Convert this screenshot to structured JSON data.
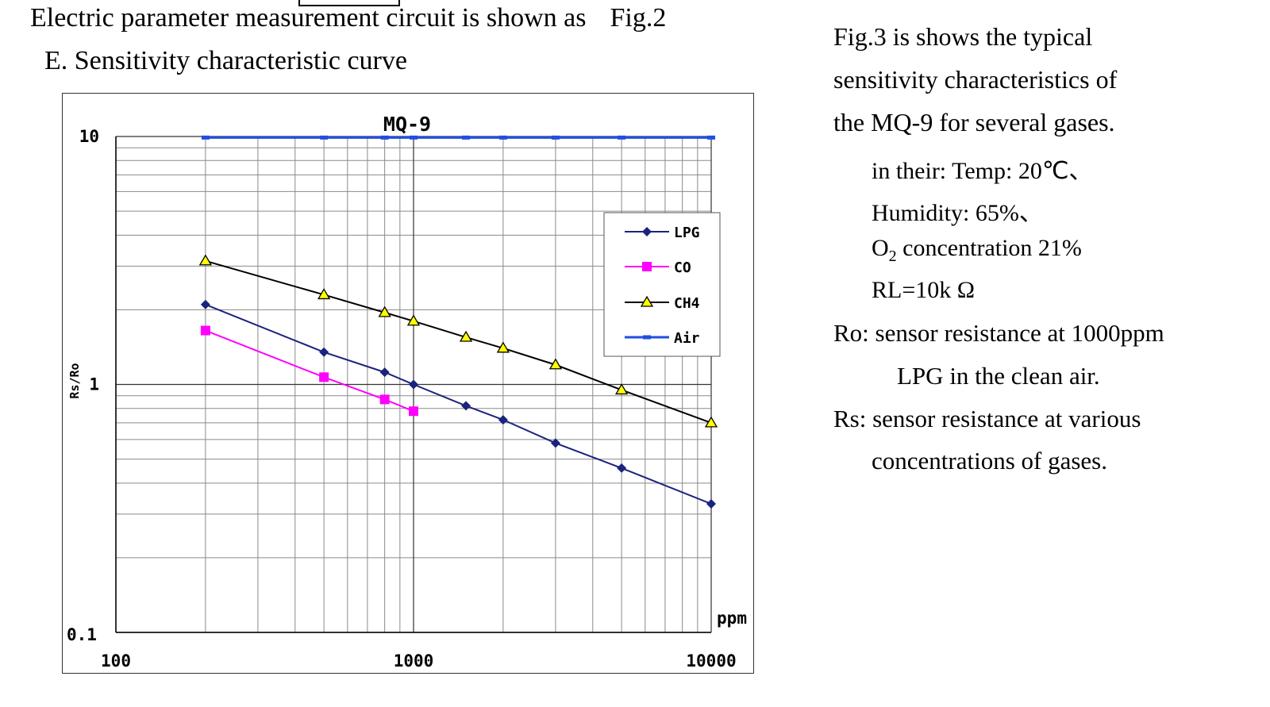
{
  "document": {
    "heading": "Electric parameter measurement circuit is shown as",
    "heading_fig": "Fig.2",
    "subheading": "E. Sensitivity characteristic curve"
  },
  "description": {
    "line1": "Fig.3 is shows the typical",
    "line2": "sensitivity characteristics of",
    "line3": "the MQ-9 for several gases.",
    "temp": "in their: Temp: 20℃、",
    "humidity": "Humidity: 65%、",
    "o2_prefix": "O",
    "o2_sub": "2",
    "o2_suffix": " concentration 21%",
    "rl": "RL=10k Ω",
    "ro_line1": "Ro: sensor resistance at 1000ppm",
    "ro_line2": "LPG in the clean air.",
    "rs_line1": "Rs: sensor resistance at various",
    "rs_line2": "concentrations of gases."
  },
  "chart_data": {
    "type": "line",
    "title": "MQ-9",
    "xlabel": "ppm",
    "ylabel": "Rs/Ro",
    "xscale": "log",
    "yscale": "log",
    "xlim": [
      100,
      10000
    ],
    "ylim": [
      0.1,
      10
    ],
    "x_ticks": [
      "100",
      "1000",
      "10000"
    ],
    "y_ticks": [
      "10",
      "1",
      "0.1"
    ],
    "grid": true,
    "legend_position": "right",
    "series": [
      {
        "name": "LPG",
        "color": "#1a237e",
        "marker": "diamond",
        "x": [
          200,
          500,
          800,
          1000,
          1500,
          2000,
          3000,
          5000,
          10000
        ],
        "y": [
          2.1,
          1.35,
          1.12,
          1.0,
          0.82,
          0.72,
          0.58,
          0.46,
          0.33
        ]
      },
      {
        "name": "CO",
        "color": "#ff00ff",
        "marker": "square",
        "x": [
          200,
          500,
          800,
          1000
        ],
        "y": [
          1.65,
          1.07,
          0.87,
          0.78
        ]
      },
      {
        "name": "CH4",
        "color": "#000000",
        "marker": "triangle",
        "x": [
          200,
          500,
          800,
          1000,
          1500,
          2000,
          3000,
          5000,
          10000
        ],
        "y": [
          3.15,
          2.3,
          1.95,
          1.8,
          1.55,
          1.4,
          1.2,
          0.95,
          0.7
        ]
      },
      {
        "name": "Air",
        "color": "#1f4fe0",
        "marker": "dash",
        "x": [
          200,
          500,
          800,
          1000,
          1500,
          2000,
          3000,
          5000,
          10000
        ],
        "y": [
          9.9,
          9.9,
          9.9,
          9.9,
          9.9,
          9.9,
          9.9,
          9.9,
          9.9
        ]
      }
    ]
  }
}
